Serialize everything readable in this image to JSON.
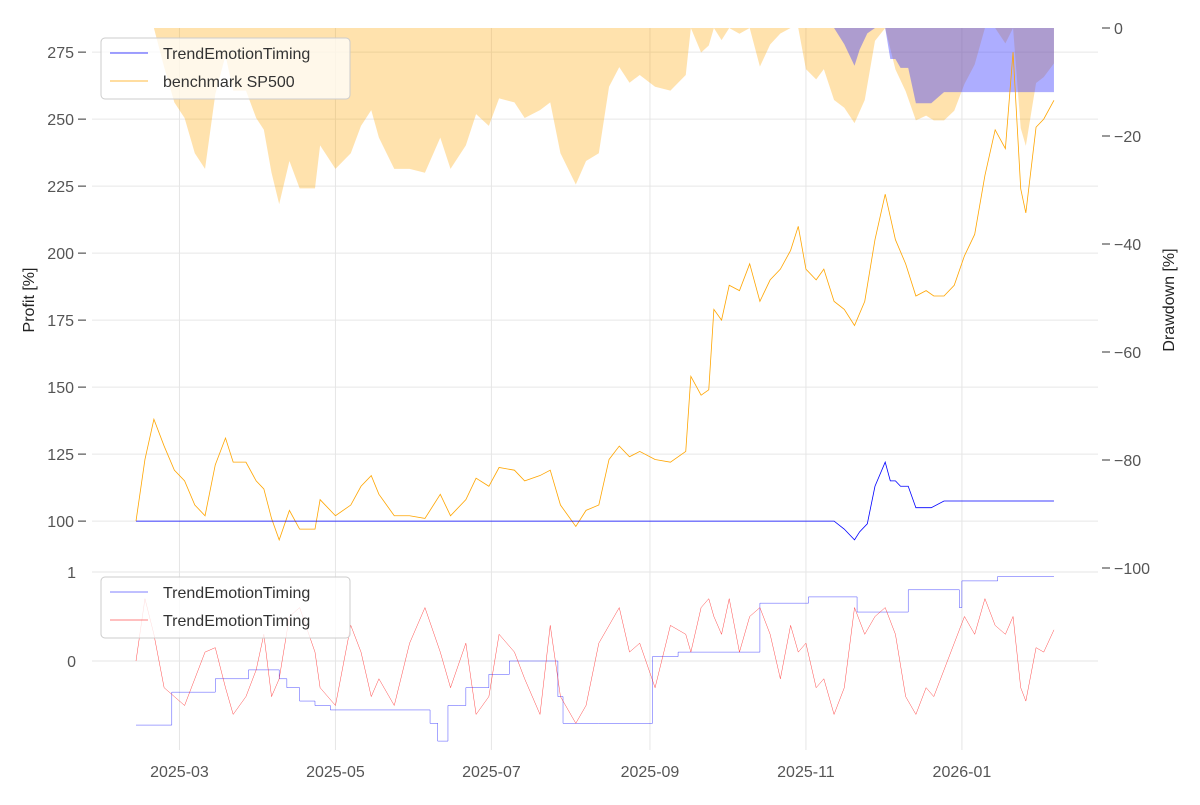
{
  "chart_data": [
    {
      "type": "line",
      "panel": "top",
      "x_unit": "days since start",
      "x_start": "2025-02-12",
      "xticks": [
        {
          "day": 17,
          "label": "2025-03"
        },
        {
          "day": 78,
          "label": "2025-05"
        },
        {
          "day": 139,
          "label": "2025-07"
        },
        {
          "day": 201,
          "label": "2025-09"
        },
        {
          "day": 262,
          "label": "2025-11"
        },
        {
          "day": 323,
          "label": "2026-01"
        }
      ],
      "ylabel": "Profit [%]",
      "ylim": [
        82.5,
        284
      ],
      "yticks": [
        100,
        125,
        150,
        175,
        200,
        225,
        250,
        275
      ],
      "y2label": "Drawdown [%]",
      "y2lim": [
        -100,
        0
      ],
      "y2ticks": [
        0,
        -20,
        -40,
        -60,
        -80,
        -100
      ],
      "y2tick_labels": [
        "0",
        "−20",
        "−40",
        "−60",
        "−80",
        "−100"
      ],
      "legend": {
        "placement": "top-left",
        "entries": [
          {
            "label": "TrendEmotionTiming",
            "color": "#0000ff"
          },
          {
            "label": "benchmark SP500",
            "color": "#ffa500"
          }
        ]
      },
      "series": [
        {
          "name": "benchmark SP500",
          "color": "#ffa500",
          "x": [
            0,
            3.5,
            7,
            11,
            15,
            19,
            23,
            27,
            31,
            35,
            38,
            43,
            47,
            50,
            53,
            56,
            60,
            64,
            70,
            72,
            78,
            84,
            88,
            92,
            95,
            101,
            107,
            113,
            119,
            123,
            129,
            133,
            138,
            142,
            148,
            152,
            158,
            162,
            166,
            172,
            176,
            181,
            185,
            189,
            193,
            197,
            203,
            209,
            215,
            217,
            221,
            224,
            226,
            229,
            232,
            236,
            240,
            244,
            248,
            252,
            256,
            259,
            262,
            266,
            269,
            273,
            277,
            281,
            285,
            289,
            293,
            297,
            301,
            305,
            309,
            312,
            316,
            320,
            324,
            328,
            332,
            336,
            340,
            343,
            346,
            348,
            352,
            355,
            359
          ],
          "values": [
            100,
            123,
            138,
            128,
            119,
            115,
            106,
            102,
            121,
            131,
            122,
            122,
            115,
            112,
            101,
            93,
            104,
            97,
            97,
            108,
            102,
            106,
            113,
            117,
            110,
            102,
            102,
            101,
            110,
            102,
            108,
            116,
            113,
            120,
            119,
            115,
            117,
            119,
            106,
            98,
            104,
            106,
            123,
            128,
            124,
            126,
            123,
            122,
            126,
            154,
            147,
            149,
            179,
            175,
            188,
            186,
            196,
            182,
            190,
            194,
            201,
            210,
            194,
            190,
            194,
            182,
            179,
            173,
            182,
            205,
            222,
            205,
            196,
            184,
            186,
            184,
            184,
            188,
            199,
            207,
            229,
            246,
            239,
            275,
            224,
            215,
            247,
            250,
            257
          ]
        },
        {
          "name": "TrendEmotionTiming",
          "color": "#0000ff",
          "x": [
            0,
            273,
            277,
            281,
            283,
            286,
            289,
            293,
            295,
            297,
            299,
            302,
            305,
            309,
            311,
            316,
            359
          ],
          "values": [
            100,
            100,
            97,
            93,
            96,
            99,
            113,
            122,
            115,
            115,
            113,
            113,
            105,
            105,
            105,
            107.5,
            107.5
          ]
        }
      ],
      "drawdown_fills": [
        {
          "of": "benchmark SP500",
          "color": "#ffa500"
        },
        {
          "of": "TrendEmotionTiming",
          "color": "#0000ff"
        }
      ]
    },
    {
      "type": "line",
      "panel": "bottom",
      "x_unit": "days since start",
      "ylim": [
        -1.0,
        1.0
      ],
      "yticks": [
        0,
        1
      ],
      "legend": {
        "placement": "top-left",
        "entries": [
          {
            "label": "TrendEmotionTiming",
            "color": "#0000ff"
          },
          {
            "label": "TrendEmotionTiming",
            "color": "#ff0000"
          }
        ]
      },
      "series": [
        {
          "name": "TrendEmotionTiming",
          "color": "#0000ff",
          "step": true,
          "x": [
            0,
            14,
            31,
            44,
            56,
            59,
            64,
            70,
            76,
            79,
            115,
            118,
            119,
            122,
            126,
            129,
            138,
            146,
            154,
            165,
            167,
            181,
            202,
            212,
            244,
            263,
            282,
            302,
            322,
            323,
            337,
            359
          ],
          "values": [
            -0.72,
            -0.35,
            -0.2,
            -0.1,
            -0.2,
            -0.3,
            -0.45,
            -0.5,
            -0.55,
            -0.55,
            -0.7,
            -0.9,
            -0.9,
            -0.5,
            -0.5,
            -0.3,
            -0.15,
            0,
            0,
            -0.4,
            -0.7,
            -0.7,
            0.05,
            0.1,
            0.65,
            0.72,
            0.55,
            0.8,
            0.6,
            0.9,
            0.95,
            0.95
          ]
        },
        {
          "name": "TrendEmotionTiming",
          "color": "#ff0000",
          "x": [
            0,
            3.5,
            7,
            11,
            15,
            19,
            23,
            27,
            31,
            35,
            38,
            43,
            47,
            50,
            53,
            56,
            60,
            64,
            70,
            72,
            78,
            84,
            88,
            92,
            95,
            101,
            107,
            113,
            119,
            123,
            129,
            133,
            138,
            142,
            148,
            152,
            158,
            162,
            166,
            172,
            176,
            181,
            185,
            189,
            193,
            197,
            203,
            209,
            215,
            217,
            221,
            224,
            226,
            229,
            232,
            236,
            240,
            244,
            248,
            252,
            256,
            259,
            262,
            266,
            269,
            273,
            277,
            281,
            285,
            289,
            293,
            297,
            301,
            305,
            309,
            312,
            316,
            320,
            324,
            328,
            332,
            336,
            340,
            343,
            346,
            348,
            352,
            355,
            359
          ],
          "values": [
            0,
            0.7,
            0.3,
            -0.3,
            -0.4,
            -0.5,
            -0.2,
            0.1,
            0.15,
            -0.3,
            -0.6,
            -0.4,
            -0.1,
            0.3,
            -0.4,
            -0.2,
            0.5,
            0.6,
            0.1,
            -0.3,
            -0.5,
            0.4,
            0.1,
            -0.4,
            -0.2,
            -0.5,
            0.2,
            0.6,
            0.1,
            -0.3,
            0.2,
            -0.6,
            -0.4,
            0.3,
            0.1,
            -0.2,
            -0.6,
            0.4,
            -0.4,
            -0.7,
            -0.5,
            0.2,
            0.4,
            0.6,
            0.1,
            0.2,
            -0.3,
            0.4,
            0.3,
            0.1,
            0.6,
            0.7,
            0.5,
            0.3,
            0.7,
            0.1,
            0.5,
            0.6,
            0.3,
            -0.2,
            0.4,
            0.1,
            0.2,
            -0.3,
            -0.2,
            -0.6,
            -0.3,
            0.6,
            0.3,
            0.5,
            0.6,
            0.3,
            -0.4,
            -0.6,
            -0.3,
            -0.4,
            -0.1,
            0.2,
            0.5,
            0.3,
            0.7,
            0.4,
            0.3,
            0.5,
            -0.3,
            -0.45,
            0.15,
            0.1,
            0.35
          ]
        }
      ]
    }
  ]
}
